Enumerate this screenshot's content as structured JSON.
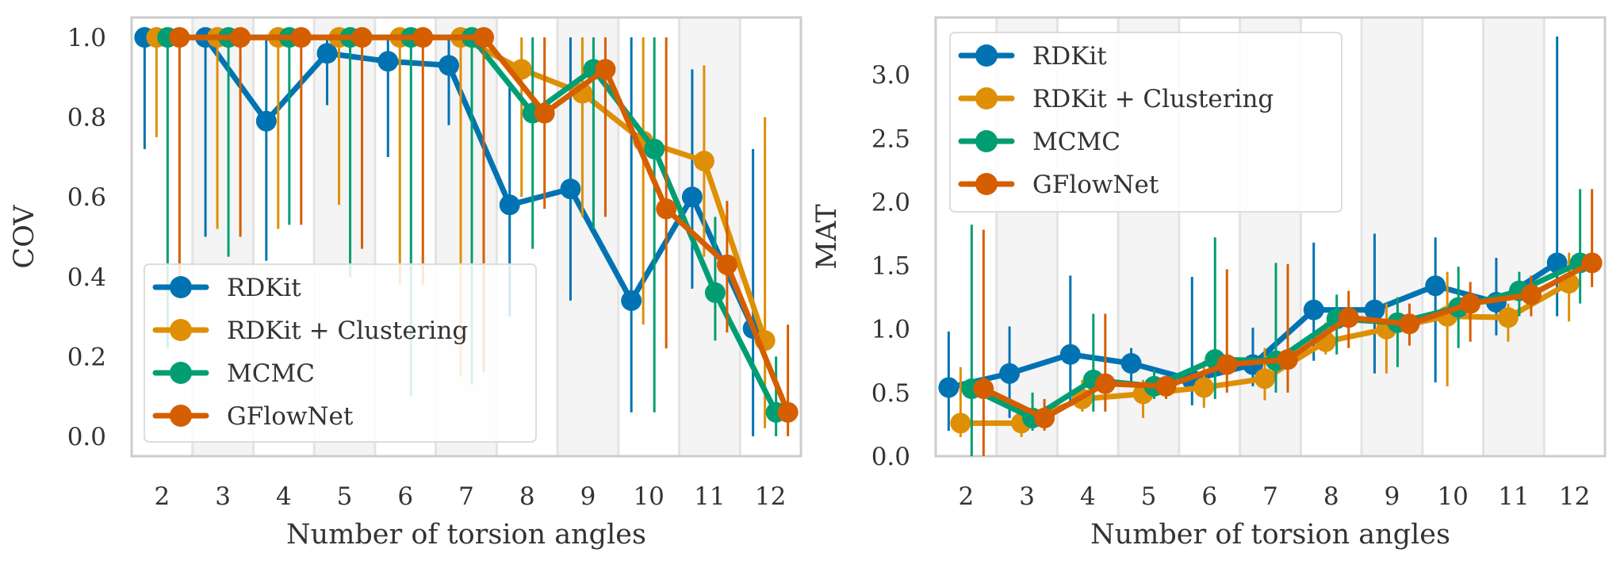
{
  "chart_data": [
    {
      "type": "line",
      "title": "",
      "xlabel": "Number of torsion angles",
      "ylabel": "COV",
      "categories": [
        "2",
        "3",
        "4",
        "5",
        "6",
        "7",
        "8",
        "9",
        "10",
        "11",
        "12"
      ],
      "yticks": [
        "0.0",
        "0.2",
        "0.4",
        "0.6",
        "0.8",
        "1.0"
      ],
      "ylim": [
        -0.05,
        1.05
      ],
      "legend_position": "lower-left",
      "series": [
        {
          "name": "RDKit",
          "color": "#0173b2",
          "values": [
            1.0,
            1.0,
            0.79,
            0.96,
            0.94,
            0.93,
            0.58,
            0.62,
            0.34,
            0.6,
            0.27
          ],
          "err_low": [
            0.72,
            0.5,
            0.44,
            0.83,
            0.7,
            0.78,
            0.3,
            0.34,
            0.06,
            0.37,
            0.0
          ],
          "err_high": [
            1.0,
            1.0,
            1.0,
            1.0,
            1.0,
            1.0,
            0.88,
            1.0,
            1.0,
            0.92,
            0.72
          ]
        },
        {
          "name": "RDKit + Clustering",
          "color": "#de8f05",
          "values": [
            1.0,
            1.0,
            1.0,
            1.0,
            1.0,
            1.0,
            0.92,
            0.86,
            0.74,
            0.69,
            0.24
          ],
          "err_low": [
            0.75,
            0.52,
            0.52,
            0.58,
            0.38,
            0.15,
            0.6,
            0.55,
            0.28,
            0.45,
            0.02
          ],
          "err_high": [
            1.0,
            1.0,
            1.0,
            1.0,
            1.0,
            1.0,
            1.0,
            1.0,
            1.0,
            0.93,
            0.8
          ]
        },
        {
          "name": "MCMC",
          "color": "#029e73",
          "values": [
            1.0,
            1.0,
            1.0,
            1.0,
            1.0,
            1.0,
            0.81,
            0.92,
            0.72,
            0.36,
            0.06
          ],
          "err_low": [
            0.22,
            0.45,
            0.53,
            0.4,
            0.1,
            0.13,
            0.47,
            0.52,
            0.06,
            0.24,
            0.0
          ],
          "err_high": [
            1.0,
            1.0,
            1.0,
            1.0,
            1.0,
            1.0,
            1.0,
            1.0,
            1.0,
            0.55,
            0.2
          ]
        },
        {
          "name": "GFlowNet",
          "color": "#d55e00",
          "values": [
            1.0,
            1.0,
            1.0,
            1.0,
            1.0,
            1.0,
            0.81,
            0.92,
            0.57,
            0.43,
            0.06
          ],
          "err_low": [
            0.4,
            0.5,
            0.53,
            0.47,
            0.38,
            0.16,
            0.57,
            0.55,
            0.22,
            0.26,
            0.0
          ],
          "err_high": [
            1.0,
            1.0,
            1.0,
            1.0,
            1.0,
            1.0,
            1.0,
            1.0,
            1.0,
            0.59,
            0.28
          ]
        }
      ]
    },
    {
      "type": "line",
      "title": "",
      "xlabel": "Number of torsion angles",
      "ylabel": "MAT",
      "categories": [
        "2",
        "3",
        "4",
        "5",
        "6",
        "7",
        "8",
        "9",
        "10",
        "11",
        "12"
      ],
      "yticks": [
        "0.0",
        "0.5",
        "1.0",
        "1.5",
        "2.0",
        "2.5",
        "3.0"
      ],
      "ylim": [
        0.0,
        3.45
      ],
      "legend_position": "upper-left",
      "series": [
        {
          "name": "RDKit",
          "color": "#0173b2",
          "values": [
            0.54,
            0.65,
            0.8,
            0.73,
            0.6,
            0.72,
            1.15,
            1.15,
            1.34,
            1.21,
            1.52
          ],
          "err_low": [
            0.2,
            0.3,
            0.4,
            0.55,
            0.4,
            0.55,
            0.75,
            0.65,
            0.58,
            0.95,
            1.1
          ],
          "err_high": [
            0.98,
            1.02,
            1.42,
            0.85,
            1.41,
            1.01,
            1.68,
            1.75,
            1.72,
            1.56,
            3.3
          ]
        },
        {
          "name": "RDKit + Clustering",
          "color": "#de8f05",
          "values": [
            0.26,
            0.26,
            0.45,
            0.49,
            0.54,
            0.61,
            0.9,
            1.0,
            1.1,
            1.09,
            1.36
          ],
          "err_low": [
            0.15,
            0.15,
            0.35,
            0.3,
            0.38,
            0.44,
            0.8,
            0.65,
            0.55,
            0.9,
            1.06
          ],
          "err_high": [
            0.7,
            0.4,
            0.6,
            0.6,
            0.75,
            0.85,
            1.05,
            1.2,
            1.45,
            1.2,
            1.6
          ]
        },
        {
          "name": "MCMC",
          "color": "#029e73",
          "values": [
            0.53,
            0.3,
            0.6,
            0.55,
            0.76,
            0.75,
            1.08,
            1.05,
            1.17,
            1.3,
            1.52
          ],
          "err_low": [
            0.0,
            0.2,
            0.35,
            0.45,
            0.45,
            0.5,
            0.8,
            0.7,
            0.85,
            1.1,
            1.2
          ],
          "err_high": [
            1.82,
            0.5,
            1.12,
            0.68,
            1.72,
            1.52,
            1.27,
            1.25,
            1.49,
            1.45,
            2.1
          ]
        },
        {
          "name": "GFlowNet",
          "color": "#d55e00",
          "values": [
            0.53,
            0.3,
            0.57,
            0.55,
            0.72,
            0.76,
            1.09,
            1.04,
            1.2,
            1.27,
            1.52
          ],
          "err_low": [
            0.0,
            0.2,
            0.35,
            0.45,
            0.5,
            0.5,
            0.85,
            0.87,
            0.9,
            1.1,
            1.33
          ],
          "err_high": [
            1.78,
            0.45,
            1.12,
            0.62,
            1.47,
            1.51,
            1.3,
            1.2,
            1.37,
            1.42,
            2.1
          ]
        }
      ]
    }
  ]
}
